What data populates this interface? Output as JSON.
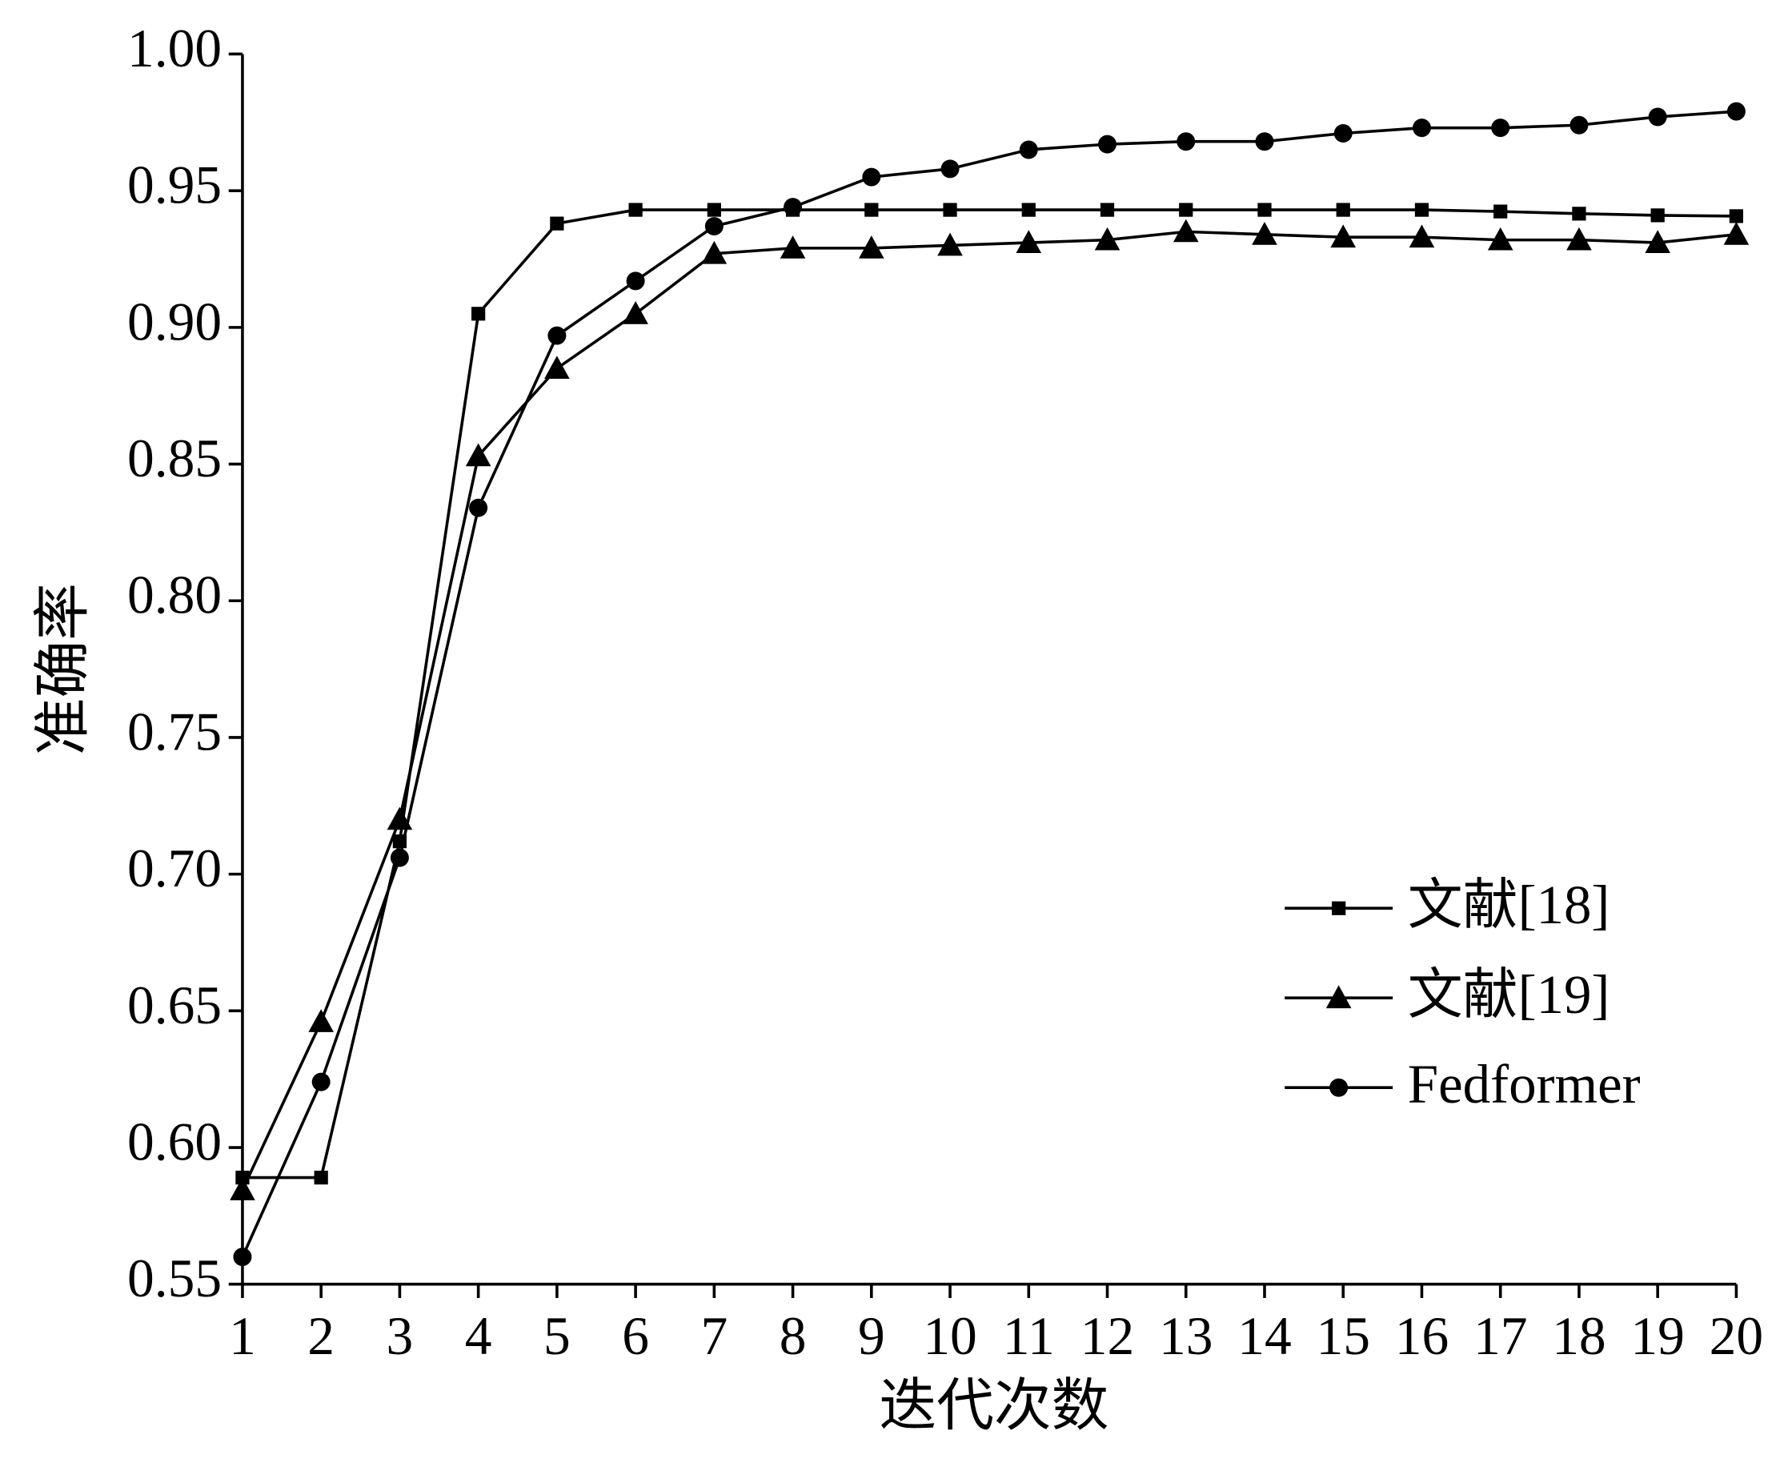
{
  "chart_data": {
    "type": "line",
    "xlabel": "迭代次数",
    "ylabel": "准确率",
    "x": [
      1,
      2,
      3,
      4,
      5,
      6,
      7,
      8,
      9,
      10,
      11,
      12,
      13,
      14,
      15,
      16,
      17,
      18,
      19,
      20
    ],
    "xlim": [
      1,
      20
    ],
    "xticks": [
      1,
      2,
      3,
      4,
      5,
      6,
      7,
      8,
      9,
      10,
      11,
      12,
      13,
      14,
      15,
      16,
      17,
      18,
      19,
      20
    ],
    "ylim": [
      0.55,
      1.0
    ],
    "yticks": [
      {
        "value": 0.55,
        "label": "0.55"
      },
      {
        "value": 0.6,
        "label": "0.60"
      },
      {
        "value": 0.65,
        "label": "0.65"
      },
      {
        "value": 0.7,
        "label": "0.70"
      },
      {
        "value": 0.75,
        "label": "0.75"
      },
      {
        "value": 0.8,
        "label": "0.80"
      },
      {
        "value": 0.85,
        "label": "0.85"
      },
      {
        "value": 0.9,
        "label": "0.90"
      },
      {
        "value": 0.95,
        "label": "0.95"
      },
      {
        "value": 1.0,
        "label": "1.00"
      }
    ],
    "legend": "lower right",
    "series": [
      {
        "name": "文献[18]",
        "color": "#000000",
        "marker": "square",
        "values": [
          0.589,
          0.589,
          0.712,
          0.905,
          0.938,
          0.943,
          0.943,
          0.943,
          0.943,
          0.943,
          0.943,
          0.943,
          0.943,
          0.943,
          0.943,
          0.943,
          0.9424,
          0.9416,
          0.941,
          0.9407
        ]
      },
      {
        "name": "文献[19]",
        "color": "#000000",
        "marker": "triangle",
        "values": [
          0.5845,
          0.646,
          0.72,
          0.853,
          0.885,
          0.905,
          0.927,
          0.929,
          0.929,
          0.93,
          0.931,
          0.932,
          0.935,
          0.934,
          0.933,
          0.933,
          0.932,
          0.932,
          0.931,
          0.934
        ]
      },
      {
        "name": "Fedformer",
        "color": "#000000",
        "marker": "circle",
        "values": [
          0.56,
          0.624,
          0.706,
          0.834,
          0.897,
          0.917,
          0.937,
          0.944,
          0.955,
          0.958,
          0.965,
          0.967,
          0.968,
          0.968,
          0.971,
          0.973,
          0.973,
          0.974,
          0.977,
          0.979
        ]
      }
    ]
  }
}
